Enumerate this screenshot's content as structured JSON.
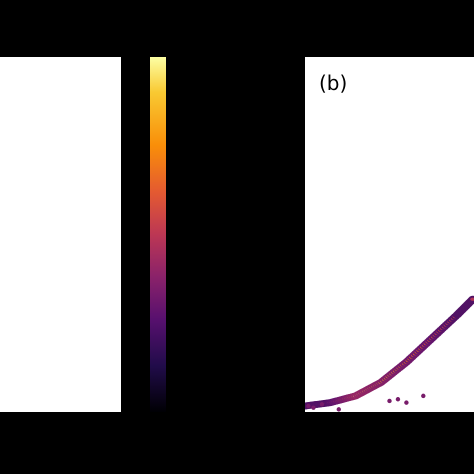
{
  "panels": {
    "b_label": "(b)"
  },
  "colors": {
    "background": "#000000",
    "panel_bg": "#ffffff",
    "colormap": "inferno"
  },
  "chart_data": [
    {
      "type": "heatmap",
      "panel": "a",
      "title": "",
      "xlabel": "",
      "ylabel": ""
    },
    {
      "type": "heatmap",
      "panel": "b",
      "title": "",
      "xlabel": "",
      "ylabel": "",
      "colormap": "inferno",
      "ridge": {
        "x": [
          0.0,
          0.15,
          0.3,
          0.45,
          0.6,
          0.75,
          0.9,
          1.0
        ],
        "y": [
          0.0,
          0.01,
          0.03,
          0.07,
          0.13,
          0.2,
          0.27,
          0.32
        ],
        "intensity": [
          0.35,
          0.6,
          0.95,
          0.85,
          0.75,
          0.65,
          0.55,
          0.5
        ]
      },
      "xlim": [
        0,
        1
      ],
      "ylim": [
        0,
        1
      ]
    }
  ],
  "colorbar": {
    "colormap": "inferno",
    "range": [
      0,
      1
    ]
  }
}
